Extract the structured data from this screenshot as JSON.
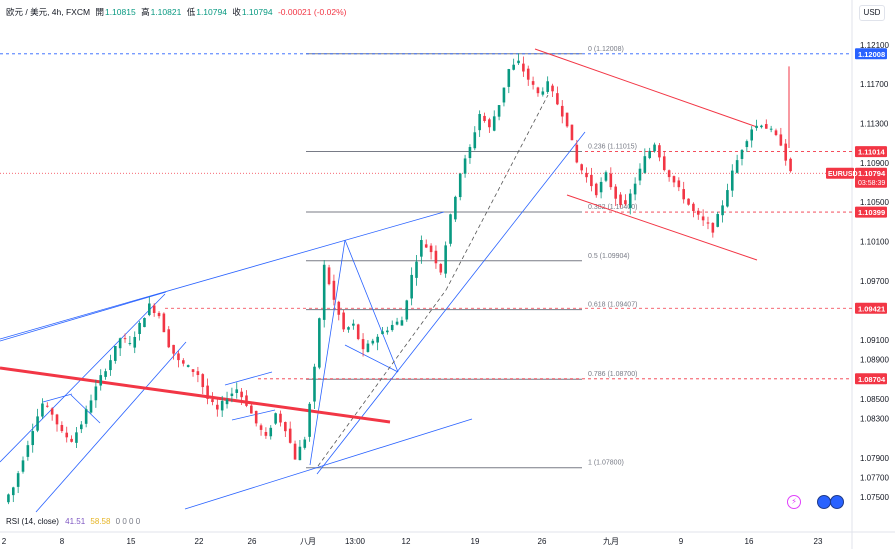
{
  "header": {
    "symbol": "欧元 / 美元, 4h, FXCM",
    "open_label": "開",
    "open": "1.10815",
    "high_label": "高",
    "high": "1.10821",
    "low_label": "低",
    "low": "1.10794",
    "close_label": "收",
    "close": "1.10794",
    "change": "-0.00021 (-0.02%)"
  },
  "currency_button": "USD",
  "rsi": {
    "label": "RSI (14, close)",
    "value1": "41.51",
    "value2": "58.58",
    "zeros": "0 0 0 0"
  },
  "chart_data": {
    "type": "candlestick",
    "ylim": [
      1.0735,
      1.1225
    ],
    "y_ticks": [
      1.121,
      1.117,
      1.113,
      1.109,
      1.105,
      1.101,
      1.097,
      1.091,
      1.089,
      1.085,
      1.083,
      1.079,
      1.077,
      1.075
    ],
    "x_ticks": [
      "2",
      "8",
      "15",
      "22",
      "26",
      "八月",
      "13:00",
      "12",
      "19",
      "26",
      "九月",
      "9",
      "16",
      "23"
    ],
    "close_path": [
      1.0745,
      1.076,
      1.079,
      1.082,
      1.0845,
      1.0835,
      1.0815,
      1.0808,
      1.0825,
      1.085,
      1.0872,
      1.089,
      1.0912,
      1.0905,
      1.0925,
      1.0945,
      1.0935,
      1.0905,
      1.0888,
      1.0882,
      1.0875,
      1.085,
      1.0838,
      1.0852,
      1.086,
      1.0845,
      1.0825,
      1.081,
      1.0835,
      1.082,
      1.079,
      1.081,
      1.088,
      1.0985,
      1.095,
      1.092,
      1.0925,
      1.0898,
      1.091,
      1.0918,
      1.0925,
      1.093,
      1.0975,
      1.101,
      1.1,
      1.098,
      1.1035,
      1.108,
      1.1105,
      1.114,
      1.1125,
      1.115,
      1.1185,
      1.1192,
      1.1175,
      1.116,
      1.117,
      1.115,
      1.113,
      1.109,
      1.1075,
      1.106,
      1.1078,
      1.1055,
      1.1045,
      1.107,
      1.1095,
      1.111,
      1.1085,
      1.107,
      1.1055,
      1.104,
      1.103,
      1.1022,
      1.1048,
      1.108,
      1.1105,
      1.1125,
      1.113,
      1.1122,
      1.111,
      1.1079
    ],
    "fib_levels": [
      {
        "ratio": "0",
        "price": 1.12008,
        "label": "0 (1.12008)"
      },
      {
        "ratio": "0.236",
        "price": 1.11015,
        "label": "0.236 (1.11015)"
      },
      {
        "ratio": "0.382",
        "price": 1.104,
        "label": "0.382 (1.10400)"
      },
      {
        "ratio": "0.5",
        "price": 1.09904,
        "label": "0.5 (1.09904)"
      },
      {
        "ratio": "0.618",
        "price": 1.09407,
        "label": "0.618 (1.09407)"
      },
      {
        "ratio": "0.786",
        "price": 1.087,
        "label": "0.786 (1.08700)"
      },
      {
        "ratio": "1",
        "price": 1.078,
        "label": "1 (1.07800)"
      }
    ],
    "price_tags": [
      {
        "price": 1.12008,
        "label": "1.12008",
        "color": "#2962ff"
      },
      {
        "price": 1.11014,
        "label": "1.11014",
        "color": "#f23645"
      },
      {
        "price": 1.10794,
        "label": "1.10794",
        "color": "#f23645",
        "symbol": "EURUSD",
        "countdown": "03:58:39"
      },
      {
        "price": 1.10399,
        "label": "1.10399",
        "color": "#f23645"
      },
      {
        "price": 1.09421,
        "label": "1.09421",
        "color": "#f23645"
      },
      {
        "price": 1.08704,
        "label": "1.08704",
        "color": "#f23645"
      }
    ],
    "colors": {
      "up": "#089981",
      "down": "#f23645",
      "channel": "#2962ff",
      "trend": "#f23645",
      "fib": "#787b86"
    }
  }
}
